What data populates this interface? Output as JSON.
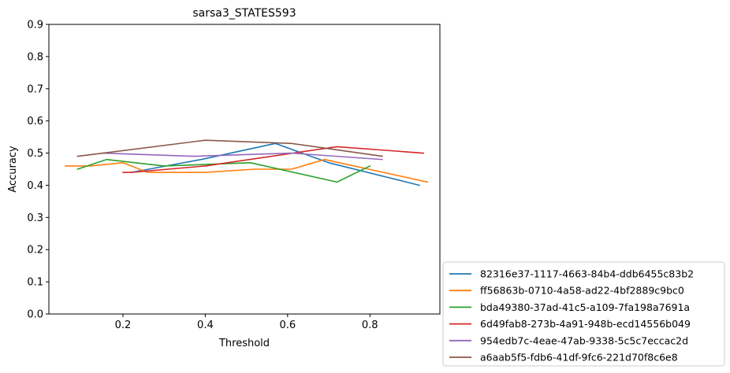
{
  "chart_data": {
    "type": "line",
    "title": "sarsa3_STATES593",
    "xlabel": "Threshold",
    "ylabel": "Accuracy",
    "xlim": [
      0.02,
      0.97
    ],
    "ylim": [
      0.0,
      0.9
    ],
    "x_ticks": [
      "0.2",
      "0.4",
      "0.6",
      "0.8"
    ],
    "y_ticks": [
      "0.0",
      "0.1",
      "0.2",
      "0.3",
      "0.4",
      "0.5",
      "0.6",
      "0.7",
      "0.8",
      "0.9"
    ],
    "grid": false,
    "legend_position": "outside-lower-right",
    "series": [
      {
        "name": "82316e37-1117-4663-84b4-ddb6455c83b2",
        "color": "#1f77b4",
        "x": [
          0.22,
          0.39,
          0.57,
          0.7,
          0.92
        ],
        "y": [
          0.44,
          0.48,
          0.53,
          0.47,
          0.4
        ]
      },
      {
        "name": "ff56863b-0710-4a58-ad22-4bf2889c9bc0",
        "color": "#ff7f0e",
        "x": [
          0.06,
          0.12,
          0.2,
          0.26,
          0.4,
          0.52,
          0.61,
          0.69,
          0.94
        ],
        "y": [
          0.46,
          0.46,
          0.47,
          0.44,
          0.44,
          0.45,
          0.45,
          0.48,
          0.41
        ]
      },
      {
        "name": "bda49380-37ad-41c5-a109-7fa198a7691a",
        "color": "#2ca02c",
        "x": [
          0.09,
          0.16,
          0.3,
          0.51,
          0.72,
          0.8
        ],
        "y": [
          0.45,
          0.48,
          0.46,
          0.47,
          0.41,
          0.46
        ]
      },
      {
        "name": "6d49fab8-273b-4a91-948b-ecd14556b049",
        "color": "#d62728",
        "x": [
          0.2,
          0.22,
          0.4,
          0.72,
          0.93
        ],
        "y": [
          0.44,
          0.44,
          0.46,
          0.52,
          0.5
        ]
      },
      {
        "name": "954edb7c-4eae-47ab-9338-5c5c7eccac2d",
        "color": "#9467bd",
        "x": [
          0.15,
          0.37,
          0.61,
          0.83
        ],
        "y": [
          0.5,
          0.49,
          0.5,
          0.48
        ]
      },
      {
        "name": "a6aab5f5-fdb6-41df-9fc6-221d70f8c6e8",
        "color": "#8c564b",
        "x": [
          0.09,
          0.4,
          0.61,
          0.83
        ],
        "y": [
          0.49,
          0.54,
          0.53,
          0.49
        ]
      }
    ]
  }
}
